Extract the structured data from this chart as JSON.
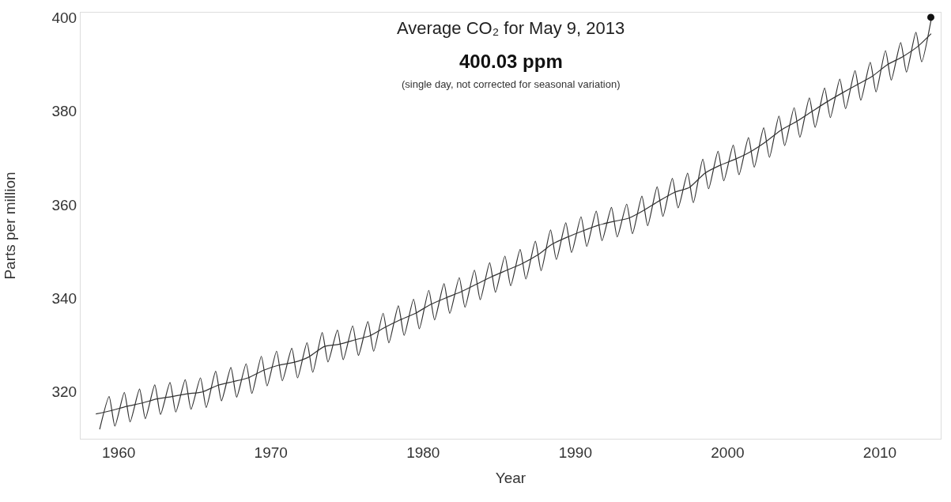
{
  "chart_data": {
    "type": "line",
    "title": "Average CO₂ for May 9, 2013",
    "subtitle": "400.03 ppm",
    "xlabel": "Year",
    "ylabel": "Parts per million",
    "annotations": [
      "(single day, not corrected for seasonal variation)"
    ],
    "series": [
      {
        "color": "#333333",
        "x": [
          1958.75,
          1959.37,
          1959.75,
          1960.37,
          1960.75,
          1961.37,
          1961.75,
          1962.37,
          1962.75,
          1963.37,
          1963.75,
          1964.37,
          1964.75,
          1965.37,
          1965.75,
          1966.37,
          1966.75,
          1967.37,
          1967.75,
          1968.37,
          1968.75,
          1969.37,
          1969.75,
          1970.37,
          1970.75,
          1971.37,
          1971.75,
          1972.37,
          1972.75,
          1973.37,
          1973.75,
          1974.37,
          1974.75,
          1975.37,
          1975.75,
          1976.37,
          1976.75,
          1977.37,
          1977.75,
          1978.37,
          1978.75,
          1979.37,
          1979.75,
          1980.37,
          1980.75,
          1981.37,
          1981.75,
          1982.37,
          1982.75,
          1983.37,
          1983.75,
          1984.37,
          1984.75,
          1985.37,
          1985.75,
          1986.37,
          1986.75,
          1987.37,
          1987.75,
          1988.37,
          1988.75,
          1989.37,
          1989.75,
          1990.37,
          1990.75,
          1991.37,
          1991.75,
          1992.37,
          1992.75,
          1993.37,
          1993.75,
          1994.37,
          1994.75,
          1995.37,
          1995.75,
          1996.37,
          1996.75,
          1997.37,
          1997.75,
          1998.37,
          1998.75,
          1999.37,
          1999.75,
          2000.37,
          2000.75,
          2001.37,
          2001.75,
          2002.37,
          2002.75,
          2003.37,
          2003.75,
          2004.37,
          2004.75,
          2005.37,
          2005.75,
          2006.37,
          2006.75,
          2007.37,
          2007.75,
          2008.37,
          2008.75,
          2009.37,
          2009.75,
          2010.37,
          2010.75,
          2011.37,
          2011.75,
          2012.37,
          2012.75,
          2013.37
        ],
        "values": [
          312.0,
          319.0,
          312.7,
          319.9,
          313.6,
          320.6,
          314.3,
          321.5,
          315.2,
          322.0,
          315.7,
          322.6,
          316.3,
          323.0,
          316.7,
          324.4,
          318.1,
          325.2,
          318.9,
          326.0,
          319.7,
          327.6,
          321.3,
          328.7,
          322.4,
          329.3,
          323.0,
          330.5,
          324.2,
          332.7,
          326.4,
          333.2,
          326.9,
          334.1,
          327.8,
          335.0,
          328.7,
          336.8,
          330.5,
          338.4,
          332.1,
          339.8,
          333.5,
          341.7,
          335.4,
          343.1,
          336.8,
          344.4,
          338.1,
          346.0,
          339.7,
          347.6,
          341.3,
          349.0,
          342.7,
          350.4,
          344.1,
          352.2,
          345.9,
          354.6,
          348.3,
          356.1,
          349.8,
          357.4,
          351.1,
          358.6,
          352.3,
          359.4,
          353.1,
          360.1,
          353.8,
          361.8,
          355.5,
          363.8,
          357.5,
          365.6,
          359.3,
          366.7,
          360.4,
          369.7,
          363.4,
          371.4,
          365.1,
          372.7,
          366.4,
          374.3,
          368.0,
          376.4,
          370.1,
          378.9,
          372.6,
          380.7,
          374.4,
          382.8,
          376.5,
          384.9,
          378.6,
          386.8,
          380.5,
          388.6,
          382.3,
          390.4,
          384.1,
          392.9,
          386.6,
          394.6,
          388.3,
          396.8,
          390.5,
          399.5
        ]
      },
      {
        "color": "#333333",
        "x": [
          1958.5,
          1959.5,
          1960.5,
          1961.5,
          1962.5,
          1963.5,
          1964.5,
          1965.5,
          1966.5,
          1967.5,
          1968.5,
          1969.5,
          1970.5,
          1971.5,
          1972.5,
          1973.5,
          1974.5,
          1975.5,
          1976.5,
          1977.5,
          1978.5,
          1979.5,
          1980.5,
          1981.5,
          1982.5,
          1983.5,
          1984.5,
          1985.5,
          1986.5,
          1987.5,
          1988.5,
          1989.5,
          1990.5,
          1991.5,
          1992.5,
          1993.5,
          1994.5,
          1995.5,
          1996.5,
          1997.5,
          1998.5,
          1999.5,
          2000.5,
          2001.5,
          2002.5,
          2003.5,
          2004.5,
          2005.5,
          2006.5,
          2007.5,
          2008.5,
          2009.5,
          2010.5,
          2011.5,
          2012.5,
          2013.37
        ],
        "values": [
          315.3,
          316.0,
          316.9,
          317.6,
          318.5,
          319.0,
          319.6,
          320.0,
          321.4,
          322.2,
          323.0,
          324.6,
          325.7,
          326.3,
          327.5,
          329.7,
          330.2,
          331.1,
          332.0,
          333.8,
          335.4,
          336.8,
          338.7,
          340.1,
          341.4,
          343.0,
          344.6,
          346.0,
          347.4,
          349.2,
          351.6,
          353.1,
          354.4,
          355.6,
          356.4,
          357.1,
          358.8,
          360.8,
          362.6,
          363.7,
          366.7,
          368.4,
          369.7,
          371.3,
          373.4,
          375.9,
          377.7,
          379.8,
          381.9,
          383.8,
          385.6,
          387.4,
          389.9,
          391.6,
          393.8,
          396.5
        ]
      },
      {
        "type": "scatter",
        "color": "#111111",
        "marker": "circle",
        "x": [
          2013.35
        ],
        "values": [
          400
        ]
      }
    ],
    "xlim": [
      1957.5,
      2014
    ],
    "xticks": [
      1960,
      1970,
      1980,
      1990,
      2000,
      2010
    ],
    "ylim": [
      310,
      401
    ],
    "yticks": [
      320,
      340,
      360,
      380,
      400
    ],
    "grid": false
  }
}
